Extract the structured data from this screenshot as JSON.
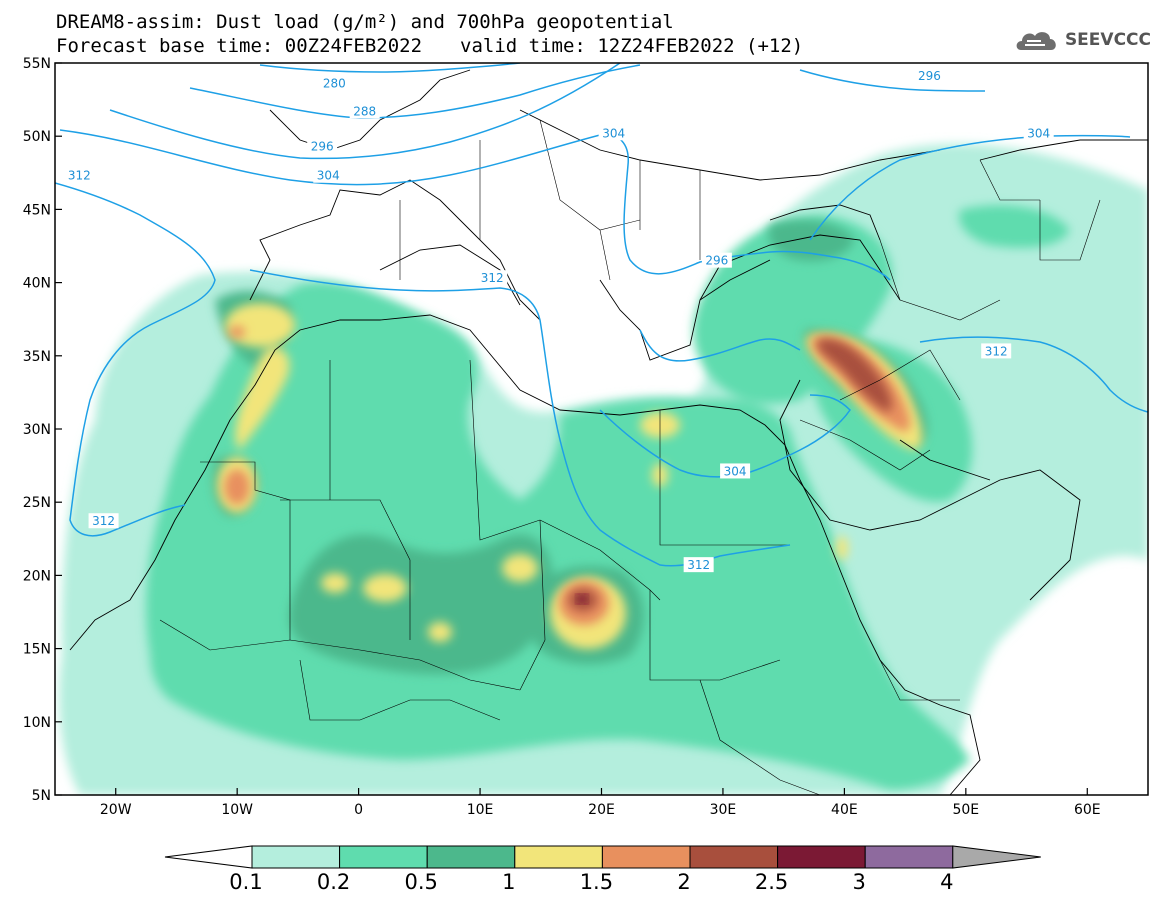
{
  "title": {
    "line1": "DREAM8-assim: Dust load (g/m²) and 700hPa geopotential",
    "line2_base": "Forecast base time: 00Z24FEB2022",
    "line2_valid": "valid time: 12Z24FEB2022 (+12)"
  },
  "logo": {
    "text": "SEEVCCC",
    "icon": "cloud-icon"
  },
  "map_extent": {
    "lon": [
      -25,
      65
    ],
    "lat": [
      5,
      55
    ]
  },
  "axes": {
    "lat_labels": [
      "55N",
      "50N",
      "45N",
      "40N",
      "35N",
      "30N",
      "25N",
      "20N",
      "15N",
      "10N",
      "5N"
    ],
    "lat_values": [
      55,
      50,
      45,
      40,
      35,
      30,
      25,
      20,
      15,
      10,
      5
    ],
    "lon_labels": [
      "20W",
      "10W",
      "0",
      "10E",
      "20E",
      "30E",
      "40E",
      "50E",
      "60E"
    ],
    "lon_values": [
      -20,
      -10,
      0,
      10,
      20,
      30,
      40,
      50,
      60
    ]
  },
  "contours": [
    {
      "label": "280",
      "lon": -2,
      "lat": 53.6
    },
    {
      "label": "288",
      "lon": 0.5,
      "lat": 51.7
    },
    {
      "label": "296",
      "lon": -3,
      "lat": 49.3
    },
    {
      "label": "304",
      "lon": -2.5,
      "lat": 47.3
    },
    {
      "label": "312",
      "lon": -23,
      "lat": 47.3
    },
    {
      "label": "312",
      "lon": 11,
      "lat": 40.3
    },
    {
      "label": "304",
      "lon": 21,
      "lat": 50.2
    },
    {
      "label": "296",
      "lon": 47,
      "lat": 54.1
    },
    {
      "label": "304",
      "lon": 56,
      "lat": 50.2
    },
    {
      "label": "296",
      "lon": 29.5,
      "lat": 41.5
    },
    {
      "label": "312",
      "lon": 52.5,
      "lat": 35.3
    },
    {
      "label": "304",
      "lon": 31,
      "lat": 27.1
    },
    {
      "label": "312",
      "lon": 28,
      "lat": 20.7
    },
    {
      "label": "312",
      "lon": -21,
      "lat": 23.7
    }
  ],
  "colorbar": {
    "labels": [
      "0.1",
      "0.2",
      "0.5",
      "1",
      "1.5",
      "2",
      "2.5",
      "3",
      "4"
    ],
    "colors": [
      "#b4eedd",
      "#5fdcae",
      "#4cb88c",
      "#f2e57a",
      "#e8905e",
      "#a84f3d",
      "#7b1934",
      "#8e6a9e"
    ],
    "under_color": "#ffffff",
    "over_color": "#a9a9a9"
  }
}
